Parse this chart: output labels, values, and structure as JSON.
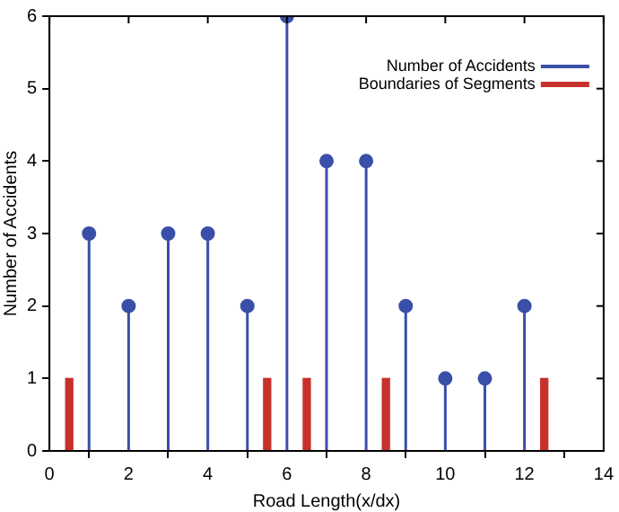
{
  "chart_data": {
    "type": "lollipop",
    "xlabel": "Road Length(x/dx)",
    "ylabel": "Number of Accidents",
    "xlim": [
      0,
      14
    ],
    "xticks": [
      0,
      2,
      4,
      6,
      8,
      10,
      12,
      14
    ],
    "ylim": [
      0,
      6
    ],
    "yticks": [
      0,
      1,
      2,
      3,
      4,
      5,
      6
    ],
    "legend": "top right",
    "marker": "circle",
    "series": [
      {
        "name": "Number of Accidents",
        "color": "#3a4fa8",
        "x": [
          1,
          2,
          3,
          4,
          5,
          6,
          7,
          8,
          9,
          10,
          11,
          12
        ],
        "values": [
          3,
          2,
          3,
          3,
          2,
          6,
          4,
          4,
          2,
          1,
          1,
          2
        ]
      },
      {
        "name": "Boundaries of Segments",
        "type": "bar",
        "color": "#c8312b",
        "x": [
          0.5,
          5.5,
          6.5,
          8.5,
          12.5
        ],
        "values": [
          1,
          1,
          1,
          1,
          1
        ]
      }
    ]
  }
}
